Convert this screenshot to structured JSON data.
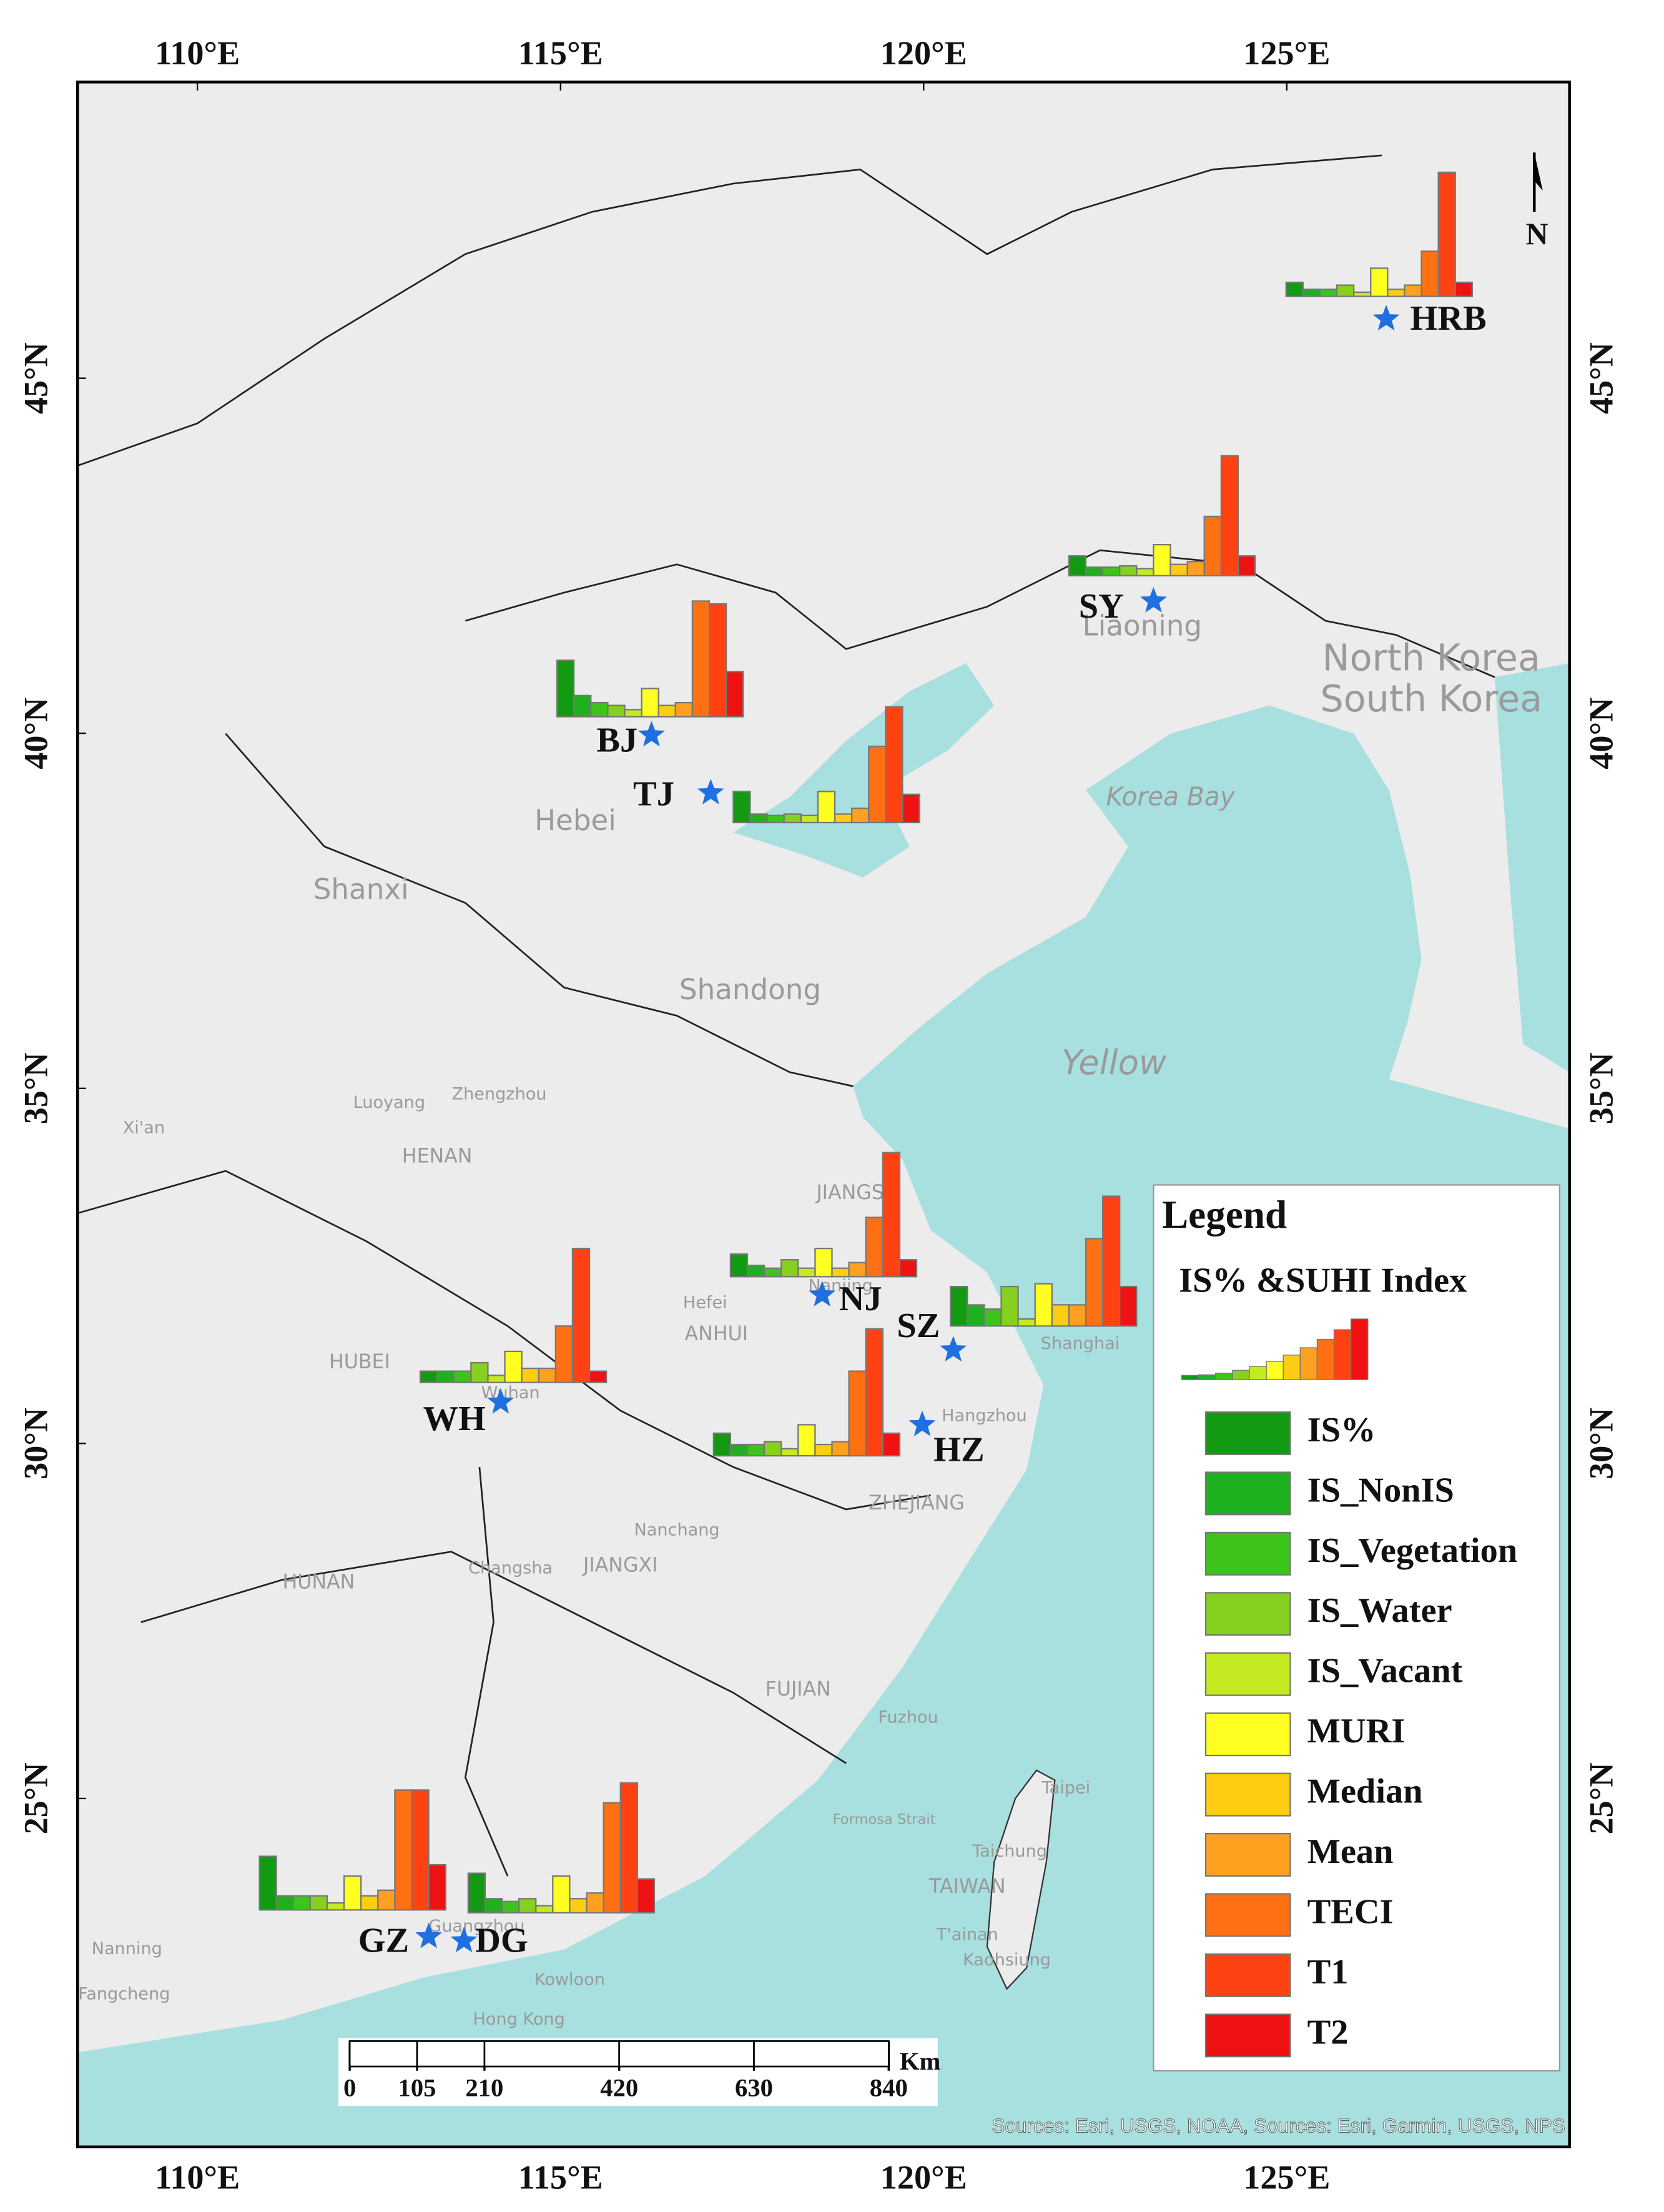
{
  "map": {
    "lon_ticks": [
      {
        "value": 110,
        "label": "110°E"
      },
      {
        "value": 115,
        "label": "115°E"
      },
      {
        "value": 120,
        "label": "120°E"
      },
      {
        "value": 125,
        "label": "125°E"
      }
    ],
    "lat_ticks": [
      {
        "value": 45,
        "label": "45°N"
      },
      {
        "value": 40,
        "label": "40°N"
      },
      {
        "value": 35,
        "label": "35°N"
      },
      {
        "value": 30,
        "label": "30°N"
      },
      {
        "value": 25,
        "label": "25°N"
      }
    ],
    "place_labels": [
      "Liaoning",
      "North Korea",
      "South Korea",
      "Korea Bay",
      "Hebei",
      "Shanxi",
      "Shandong",
      "Yellow",
      "Luoyang",
      "Zhengzhou",
      "Xi'an",
      "HENAN",
      "HUBEI",
      "ANHUI",
      "JIANGSU",
      "Hefei",
      "Nanjing",
      "Shanghai",
      "Wuhan",
      "Hangzhou",
      "ZHEJIANG",
      "Nanchang",
      "Changsha",
      "JIANGXI",
      "HUNAN",
      "FUJIAN",
      "Fuzhou",
      "Taipei",
      "Taichung",
      "TAIWAN",
      "T'ainan",
      "Kaohsiung",
      "Formosa Strait",
      "Nanning",
      "Fangcheng",
      "Guangzhou",
      "Kowloon",
      "Hong Kong"
    ],
    "cities": [
      {
        "label": "HRB",
        "values": [
          10,
          5,
          5,
          8,
          3,
          20,
          5,
          8,
          32,
          88,
          10
        ]
      },
      {
        "label": "SY",
        "values": [
          14,
          6,
          6,
          7,
          5,
          22,
          8,
          10,
          42,
          85,
          14
        ]
      },
      {
        "label": "BJ",
        "values": [
          40,
          15,
          10,
          8,
          5,
          20,
          8,
          10,
          82,
          80,
          32
        ]
      },
      {
        "label": "TJ",
        "values": [
          22,
          6,
          5,
          6,
          5,
          22,
          6,
          10,
          54,
          82,
          20
        ]
      },
      {
        "label": "NJ",
        "values": [
          16,
          8,
          6,
          12,
          6,
          20,
          6,
          10,
          42,
          88,
          12
        ]
      },
      {
        "label": "SZ",
        "values": [
          28,
          15,
          12,
          28,
          5,
          30,
          15,
          15,
          62,
          92,
          28
        ]
      },
      {
        "label": "WH",
        "values": [
          8,
          8,
          8,
          14,
          5,
          22,
          10,
          10,
          40,
          95,
          8
        ]
      },
      {
        "label": "HZ",
        "values": [
          16,
          8,
          8,
          10,
          5,
          22,
          8,
          10,
          60,
          90,
          16
        ]
      },
      {
        "label": "GZ",
        "values": [
          38,
          10,
          10,
          10,
          5,
          24,
          10,
          14,
          85,
          85,
          32
        ]
      },
      {
        "label": "DG",
        "values": [
          28,
          10,
          8,
          10,
          5,
          26,
          10,
          14,
          78,
          92,
          24
        ]
      }
    ],
    "legend": {
      "title": "Legend",
      "subtitle": "IS% &SUHI Index",
      "items": [
        {
          "name": "IS%",
          "color": "#129a12"
        },
        {
          "name": "IS_NonIS",
          "color": "#1fb01f"
        },
        {
          "name": "IS_Vegetation",
          "color": "#3cc41a"
        },
        {
          "name": "IS_Water",
          "color": "#86d020"
        },
        {
          "name": "IS_Vacant",
          "color": "#c4ea22"
        },
        {
          "name": "MURI",
          "color": "#ffff22"
        },
        {
          "name": "Median",
          "color": "#ffcc14"
        },
        {
          "name": "Mean",
          "color": "#ffa020"
        },
        {
          "name": "TECI",
          "color": "#ff7012"
        },
        {
          "name": "T1",
          "color": "#ff4212"
        },
        {
          "name": "T2",
          "color": "#ee1212"
        }
      ]
    },
    "scale_bar": {
      "ticks": [
        0,
        105,
        210,
        420,
        630,
        840
      ],
      "unit": "Km"
    },
    "north": "N",
    "sources": "Sources: Esri, USGS, NOAA, Sources: Esri, Garmin, USGS, NPS"
  }
}
